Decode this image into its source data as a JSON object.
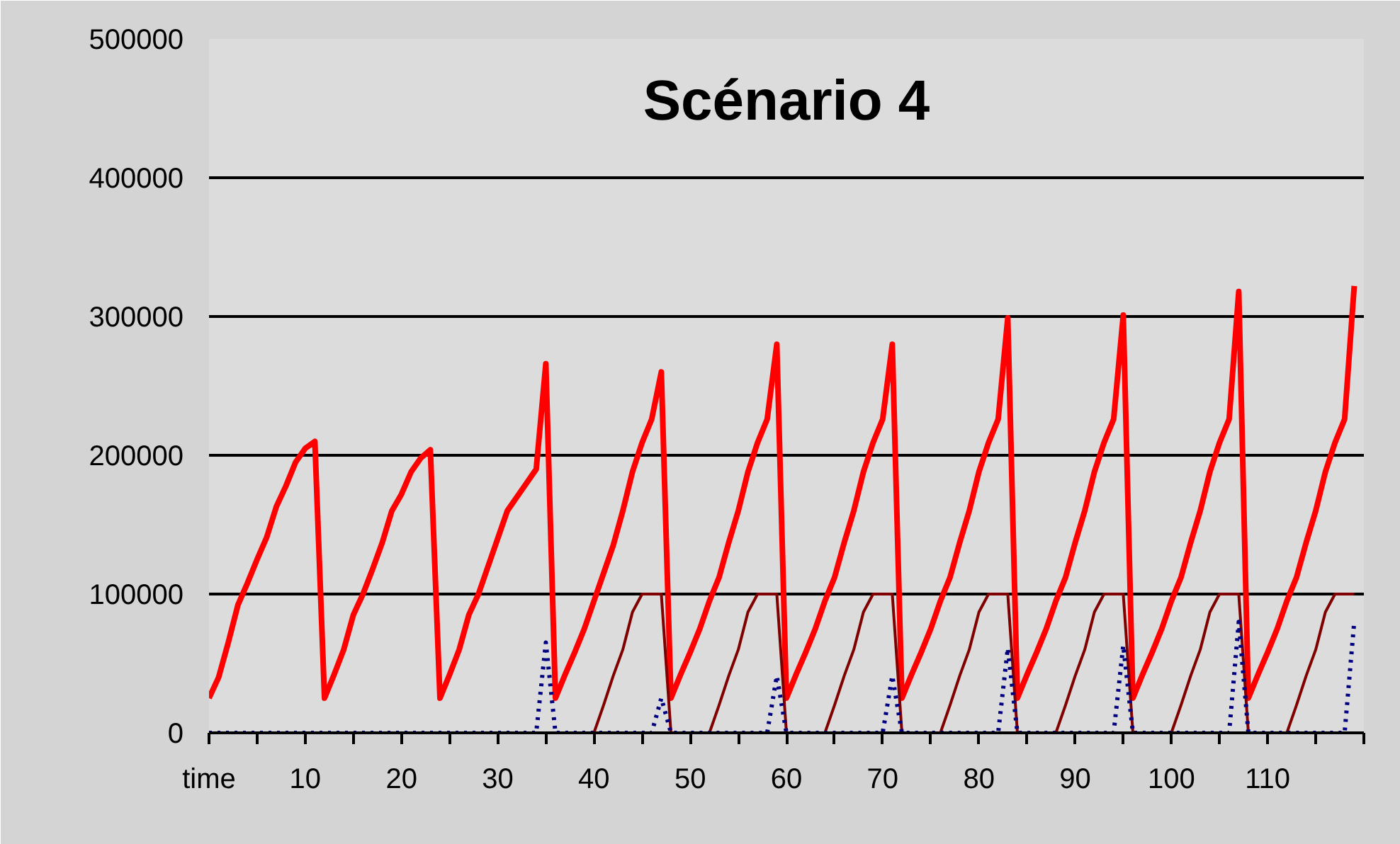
{
  "chart_data": {
    "type": "line",
    "title": "Scénario 4",
    "x": [
      0,
      1,
      2,
      3,
      4,
      5,
      6,
      7,
      8,
      9,
      10,
      11,
      12,
      13,
      14,
      15,
      16,
      17,
      18,
      19,
      20,
      21,
      22,
      23,
      24,
      25,
      26,
      27,
      28,
      29,
      30,
      31,
      32,
      33,
      34,
      35,
      36,
      37,
      38,
      39,
      40,
      41,
      42,
      43,
      44,
      45,
      46,
      47,
      48,
      49,
      50,
      51,
      52,
      53,
      54,
      55,
      56,
      57,
      58,
      59,
      60,
      61,
      62,
      63,
      64,
      65,
      66,
      67,
      68,
      69,
      70,
      71,
      72,
      73,
      74,
      75,
      76,
      77,
      78,
      79,
      80,
      81,
      82,
      83,
      84,
      85,
      86,
      87,
      88,
      89,
      90,
      91,
      92,
      93,
      94,
      95,
      96,
      97,
      98,
      99,
      100,
      101,
      102,
      103,
      104,
      105,
      106,
      107,
      108,
      109,
      110,
      111,
      112,
      113,
      114,
      115,
      116,
      117,
      118,
      119
    ],
    "series": [
      {
        "color": "#ff0000",
        "line_style": "solid",
        "values": [
          25000,
          40000,
          65000,
          92000,
          108000,
          125000,
          141000,
          163000,
          178000,
          195000,
          205000,
          210000,
          25000,
          42000,
          60000,
          85000,
          100000,
          118000,
          137000,
          160000,
          172000,
          188000,
          198000,
          204000,
          25000,
          42000,
          60000,
          85000,
          100000,
          120000,
          140000,
          160000,
          170000,
          180000,
          190000,
          266000,
          25000,
          42000,
          58000,
          75000,
          95000,
          115000,
          135000,
          160000,
          188000,
          209000,
          226000,
          260000,
          25000,
          42000,
          58000,
          75000,
          95000,
          112000,
          137000,
          160000,
          188000,
          209000,
          226000,
          280000,
          25000,
          42000,
          58000,
          75000,
          95000,
          112000,
          137000,
          160000,
          188000,
          209000,
          226000,
          280000,
          25000,
          42000,
          58000,
          75000,
          95000,
          112000,
          137000,
          160000,
          188000,
          209000,
          226000,
          299000,
          25000,
          42000,
          58000,
          75000,
          95000,
          112000,
          137000,
          160000,
          188000,
          209000,
          226000,
          301000,
          25000,
          42000,
          58000,
          75000,
          95000,
          112000,
          137000,
          160000,
          188000,
          209000,
          226000,
          318000,
          25000,
          42000,
          58000,
          75000,
          95000,
          112000,
          137000,
          160000,
          188000,
          209000,
          226000,
          322000
        ]
      },
      {
        "color": "#800000",
        "line_style": "solid",
        "values": [
          null,
          null,
          null,
          null,
          null,
          null,
          null,
          null,
          null,
          null,
          null,
          null,
          null,
          null,
          null,
          null,
          null,
          null,
          null,
          null,
          null,
          null,
          null,
          null,
          null,
          null,
          null,
          null,
          null,
          null,
          null,
          null,
          null,
          null,
          null,
          null,
          null,
          null,
          null,
          null,
          0,
          20000,
          41000,
          60000,
          87000,
          100000,
          100000,
          100000,
          0,
          null,
          null,
          null,
          0,
          20000,
          41000,
          60000,
          87000,
          100000,
          100000,
          100000,
          0,
          null,
          null,
          null,
          0,
          20000,
          41000,
          60000,
          87000,
          100000,
          100000,
          100000,
          0,
          null,
          null,
          null,
          0,
          20000,
          41000,
          60000,
          87000,
          100000,
          100000,
          100000,
          0,
          null,
          null,
          null,
          0,
          20000,
          41000,
          60000,
          87000,
          100000,
          100000,
          100000,
          0,
          null,
          null,
          null,
          0,
          20000,
          41000,
          60000,
          87000,
          100000,
          100000,
          100000,
          0,
          null,
          null,
          null,
          0,
          20000,
          41000,
          60000,
          87000,
          100000,
          100000,
          100000
        ]
      },
      {
        "color": "#000080",
        "line_style": "dotted",
        "values": [
          0,
          0,
          0,
          0,
          0,
          0,
          0,
          0,
          0,
          0,
          0,
          0,
          0,
          0,
          0,
          0,
          0,
          0,
          0,
          0,
          0,
          0,
          0,
          0,
          0,
          0,
          0,
          0,
          0,
          0,
          0,
          0,
          0,
          0,
          0,
          65000,
          0,
          0,
          0,
          0,
          0,
          0,
          0,
          0,
          0,
          0,
          0,
          25000,
          0,
          0,
          0,
          0,
          0,
          0,
          0,
          0,
          0,
          0,
          0,
          41000,
          0,
          0,
          0,
          0,
          0,
          0,
          0,
          0,
          0,
          0,
          0,
          41000,
          0,
          0,
          0,
          0,
          0,
          0,
          0,
          0,
          0,
          0,
          0,
          61000,
          0,
          0,
          0,
          0,
          0,
          0,
          0,
          0,
          0,
          0,
          0,
          63000,
          0,
          0,
          0,
          0,
          0,
          0,
          0,
          0,
          0,
          0,
          0,
          80000,
          0,
          0,
          0,
          0,
          0,
          0,
          0,
          0,
          0,
          0,
          0,
          80000
        ]
      }
    ],
    "xlim": [
      0,
      120
    ],
    "xticks": [
      {
        "value": 0,
        "label": "time"
      },
      {
        "value": 5,
        "label": null
      },
      10,
      {
        "value": 15,
        "label": null
      },
      20,
      {
        "value": 25,
        "label": null
      },
      30,
      {
        "value": 35,
        "label": null
      },
      40,
      {
        "value": 45,
        "label": null
      },
      50,
      {
        "value": 55,
        "label": null
      },
      60,
      {
        "value": 65,
        "label": null
      },
      70,
      {
        "value": 75,
        "label": null
      },
      80,
      {
        "value": 85,
        "label": null
      },
      90,
      {
        "value": 95,
        "label": null
      },
      100,
      {
        "value": 105,
        "label": null
      },
      110,
      {
        "value": 115,
        "label": null
      },
      {
        "value": 120,
        "label": null
      }
    ],
    "ylim": [
      0,
      500000
    ],
    "yticks": [
      0,
      100000,
      200000,
      300000,
      400000,
      500000
    ],
    "grid": "y"
  }
}
